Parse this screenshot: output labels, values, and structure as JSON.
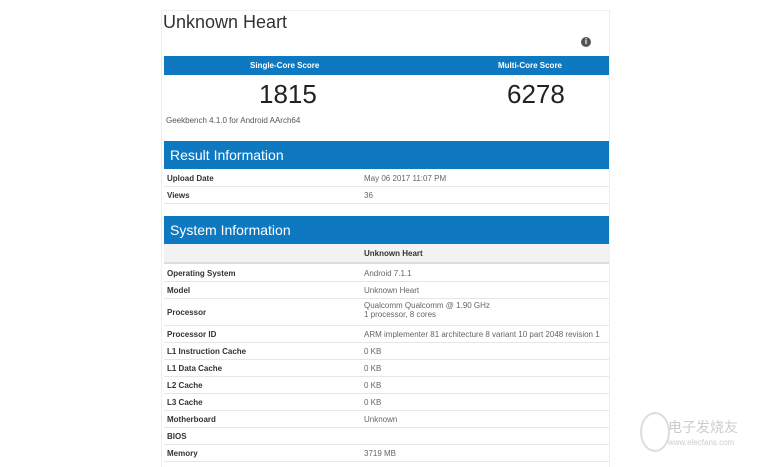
{
  "title": "Unknown Heart",
  "scores": {
    "single_label": "Single-Core Score",
    "multi_label": "Multi-Core Score",
    "single": "1815",
    "multi": "6278"
  },
  "version": "Geekbench 4.1.0 for Android AArch64",
  "result_info": {
    "header": "Result Information",
    "rows": [
      {
        "k": "Upload Date",
        "v": "May 06 2017 11:07 PM"
      },
      {
        "k": "Views",
        "v": "36"
      }
    ]
  },
  "system_info": {
    "header": "System Information",
    "column": "Unknown Heart",
    "rows": [
      {
        "k": "Operating System",
        "v": "Android 7.1.1"
      },
      {
        "k": "Model",
        "v": "Unknown Heart"
      },
      {
        "k": "Processor",
        "v": "Qualcomm Qualcomm @ 1.90 GHz",
        "v2": "1 processor, 8 cores"
      },
      {
        "k": "Processor ID",
        "v": "ARM implementer 81 architecture 8 variant 10 part 2048 revision 1"
      },
      {
        "k": "L1 Instruction Cache",
        "v": "0 KB"
      },
      {
        "k": "L1 Data Cache",
        "v": "0 KB"
      },
      {
        "k": "L2 Cache",
        "v": "0 KB"
      },
      {
        "k": "L3 Cache",
        "v": "0 KB"
      },
      {
        "k": "Motherboard",
        "v": "Unknown"
      },
      {
        "k": "BIOS",
        "v": ""
      },
      {
        "k": "Memory",
        "v": "3719 MB"
      }
    ]
  },
  "watermark": {
    "cn": "电子发烧友",
    "url": "www.elecfans.com"
  },
  "colors": {
    "accent": "#0e79c1"
  },
  "icons": {
    "info": "info-circle-icon"
  }
}
